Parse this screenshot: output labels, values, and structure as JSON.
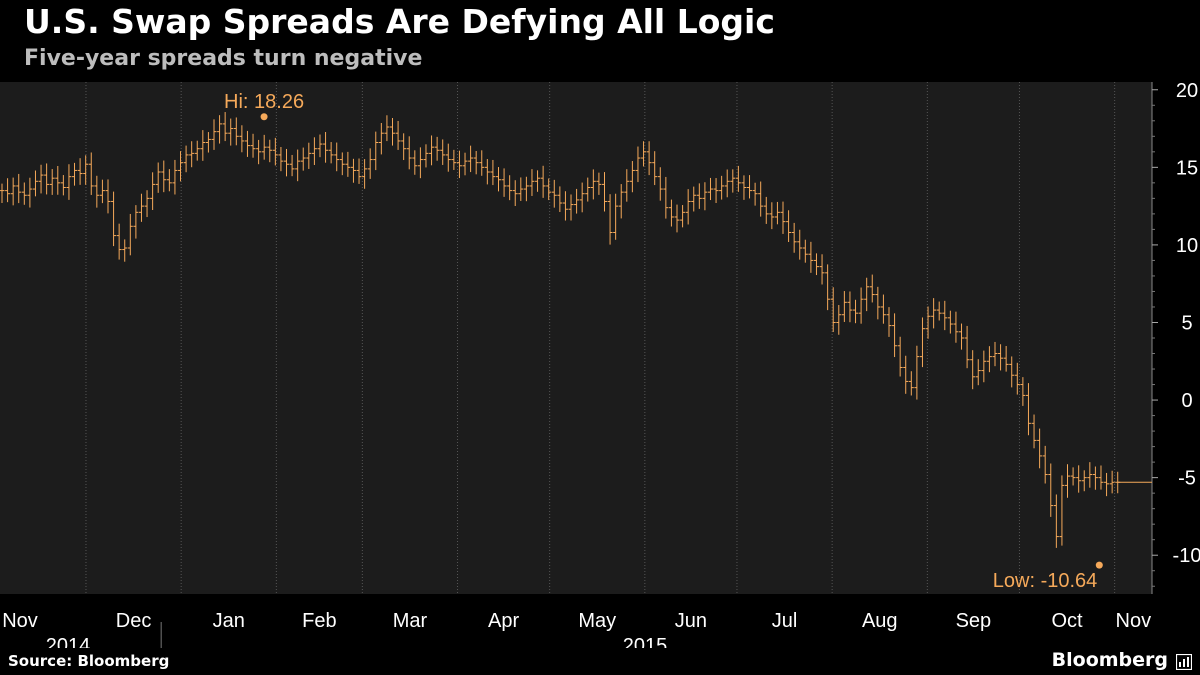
{
  "title": "U.S. Swap Spreads Are Defying All Logic",
  "subtitle": "Five-year spreads turn negative",
  "source": "Source: Bloomberg",
  "brand": "Bloomberg",
  "brand_icon": "bloomberg-terminal-icon",
  "colors": {
    "background": "#000000",
    "plot_bg": "#1c1c1c",
    "series": "#f5a95a",
    "annotation": "#f5a95a",
    "text": "#ffffff",
    "subtitle": "#bdbdbd",
    "grid": "#555555"
  },
  "chart_data": {
    "type": "line",
    "style": "ohlc-bars",
    "series": [
      {
        "values": [
          13.5,
          13.3,
          13.8,
          13.4,
          13.2,
          13.6,
          14.1,
          14.5,
          13.9,
          14.3,
          14.0,
          13.7,
          14.4,
          14.8,
          14.6,
          15.2,
          13.8,
          13.2,
          13.5,
          12.8,
          10.6,
          9.7,
          9.8,
          11.2,
          12.1,
          12.5,
          13.0,
          13.9,
          14.7,
          14.2,
          14.0,
          14.8,
          15.3,
          15.8,
          15.9,
          16.2,
          16.6,
          16.8,
          17.3,
          17.8,
          17.2,
          17.5,
          17.0,
          16.7,
          16.4,
          16.2,
          16.0,
          16.3,
          16.1,
          15.8,
          15.4,
          15.2,
          14.9,
          15.4,
          15.6,
          15.9,
          16.2,
          16.5,
          16.1,
          15.8,
          15.5,
          15.2,
          15.0,
          14.8,
          14.4,
          14.9,
          15.5,
          16.6,
          17.2,
          17.6,
          17.2,
          16.7,
          16.2,
          15.6,
          15.1,
          15.5,
          15.9,
          16.3,
          16.1,
          15.8,
          15.5,
          15.3,
          15.1,
          15.4,
          15.6,
          15.3,
          15.0,
          14.7,
          14.4,
          14.2,
          13.8,
          13.5,
          13.3,
          13.6,
          13.8,
          14.1,
          14.3,
          13.8,
          13.4,
          13.2,
          12.7,
          12.3,
          12.6,
          12.9,
          13.3,
          13.7,
          14.1,
          13.9,
          12.8,
          10.8,
          12.5,
          13.4,
          14.1,
          14.8,
          15.6,
          16.0,
          15.3,
          14.4,
          13.6,
          12.4,
          11.8,
          11.6,
          12.1,
          12.8,
          13.2,
          13.0,
          13.4,
          13.6,
          13.5,
          13.8,
          14.1,
          14.3,
          14.0,
          13.7,
          13.5,
          13.3,
          12.5,
          12.0,
          11.8,
          12.1,
          11.5,
          10.8,
          10.2,
          9.8,
          9.4,
          9.0,
          8.6,
          8.2,
          6.5,
          5.0,
          5.5,
          6.3,
          5.8,
          5.6,
          6.5,
          7.3,
          6.8,
          6.0,
          5.5,
          4.8,
          3.5,
          2.1,
          1.2,
          0.8,
          2.8,
          4.6,
          5.4,
          5.8,
          5.6,
          5.3,
          4.9,
          4.4,
          4.0,
          2.6,
          1.5,
          1.9,
          2.5,
          2.8,
          3.0,
          2.7,
          2.3,
          1.6,
          1.0,
          0.3,
          -1.5,
          -2.6,
          -3.6,
          -4.8,
          -6.8,
          -8.8,
          -5.5,
          -4.9,
          -5.0,
          -5.2,
          -5.0,
          -4.8,
          -5.0,
          -5.3,
          -5.4,
          -5.3,
          -5.3
        ]
      }
    ],
    "x_start": "2014-11-03",
    "x_end": "2015-11-06",
    "x_ticks": [
      "Nov",
      "Dec",
      "Jan",
      "Feb",
      "Mar",
      "Apr",
      "May",
      "Jun",
      "Jul",
      "Aug",
      "Sep",
      "Oct",
      "Nov"
    ],
    "year_labels": [
      "2014",
      "2015"
    ],
    "y_ticks": [
      20,
      15,
      10,
      5,
      0,
      -5,
      -10
    ],
    "ylim": [
      -12.5,
      20.5
    ],
    "grid": "x-only dotted",
    "y_axis_side": "right",
    "annotations": [
      {
        "label": "Hi: 18.26",
        "date": "2015-01-28",
        "value": 18.26
      },
      {
        "label": "Low: -10.64",
        "date": "2015-10-27",
        "value": -10.64
      }
    ]
  }
}
